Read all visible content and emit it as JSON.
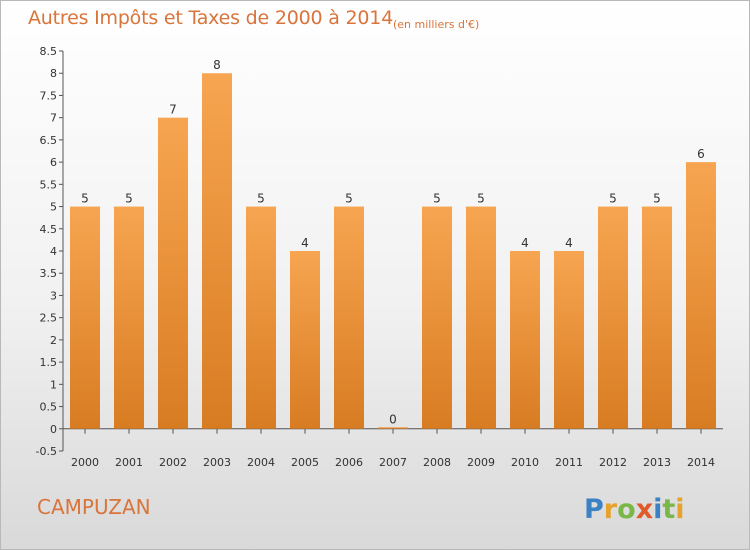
{
  "header": {
    "title": "Autres Impôts et Taxes de 2000 à 2014",
    "subtitle": "(en milliers d'€)"
  },
  "commune": "CAMPUZAN",
  "logo": {
    "text": "Proxiti"
  },
  "colors": {
    "title": "#d9743a",
    "bar_top": "#f7a551",
    "bar_bottom": "#d87c22"
  },
  "chart_data": {
    "type": "bar",
    "categories": [
      "2000",
      "2001",
      "2002",
      "2003",
      "2004",
      "2005",
      "2006",
      "2007",
      "2008",
      "2009",
      "2010",
      "2011",
      "2012",
      "2013",
      "2014"
    ],
    "values": [
      5,
      5,
      7,
      8,
      5,
      4,
      5,
      0,
      5,
      5,
      4,
      4,
      5,
      5,
      6
    ],
    "data_labels": [
      "5",
      "5",
      "7",
      "8",
      "5",
      "4",
      "5",
      "0",
      "5",
      "5",
      "4",
      "4",
      "5",
      "5",
      "6"
    ],
    "yticks": [
      "-0.5",
      "0",
      "0.5",
      "1",
      "1.5",
      "2",
      "2.5",
      "3",
      "3.5",
      "4",
      "4.5",
      "5",
      "5.5",
      "6",
      "6.5",
      "7",
      "7.5",
      "8",
      "8.5"
    ],
    "ylim": [
      -0.5,
      8.5
    ],
    "grid": false,
    "title": "Autres Impôts et Taxes de 2000 à 2014",
    "xlabel": "",
    "ylabel": ""
  }
}
